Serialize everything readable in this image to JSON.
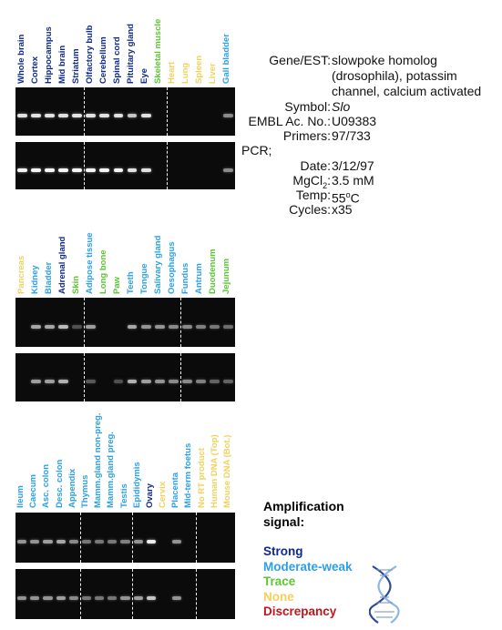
{
  "colors": {
    "strong": "#0e2a8f",
    "moderate_weak": "#2aa0e8",
    "trace": "#5cc632",
    "none": "#f2d15a",
    "discrepancy": "#c3151c"
  },
  "panels": [
    {
      "tissues": [
        {
          "name": "Whole brain",
          "signal": "strong",
          "band1": 0.85,
          "band2": 0.95
        },
        {
          "name": "Cortex",
          "signal": "strong",
          "band1": 0.85,
          "band2": 0.95
        },
        {
          "name": "Hippocampus",
          "signal": "strong",
          "band1": 0.85,
          "band2": 0.95
        },
        {
          "name": "Mid brain",
          "signal": "strong",
          "band1": 0.85,
          "band2": 0.95
        },
        {
          "name": "Striatum",
          "signal": "strong",
          "band1": 0.85,
          "band2": 0.95
        },
        {
          "name": "Olfactory bulb",
          "signal": "strong",
          "band1": 0.85,
          "band2": 0.95
        },
        {
          "name": "Cerebellum",
          "signal": "strong",
          "band1": 0.85,
          "band2": 0.95
        },
        {
          "name": "Spinal cord",
          "signal": "strong",
          "band1": 0.85,
          "band2": 0.95
        },
        {
          "name": "Pituitary gland",
          "signal": "strong",
          "band1": 0.7,
          "band2": 0.85
        },
        {
          "name": "Eye",
          "signal": "strong",
          "band1": 0.85,
          "band2": 0.85
        },
        {
          "name": "Skeletal muscle",
          "signal": "trace",
          "band1": 0,
          "band2": 0
        },
        {
          "name": "Heart",
          "signal": "none",
          "band1": 0,
          "band2": 0
        },
        {
          "name": "Lung",
          "signal": "none",
          "band1": 0,
          "band2": 0
        },
        {
          "name": "Spleen",
          "signal": "none",
          "band1": 0,
          "band2": 0
        },
        {
          "name": "Liver",
          "signal": "none",
          "band1": 0,
          "band2": 0
        },
        {
          "name": "Gall bladder",
          "signal": "moderate_weak",
          "band1": 0.4,
          "band2": 0.4
        }
      ],
      "separators_after": [
        4,
        10
      ]
    },
    {
      "tissues": [
        {
          "name": "Pancreas",
          "signal": "none",
          "band1": 0,
          "band2": 0
        },
        {
          "name": "Kidney",
          "signal": "moderate_weak",
          "band1": 0.55,
          "band2": 0.5
        },
        {
          "name": "Bladder",
          "signal": "moderate_weak",
          "band1": 0.55,
          "band2": 0.5
        },
        {
          "name": "Adrenal gland",
          "signal": "strong",
          "band1": 0.65,
          "band2": 0.6
        },
        {
          "name": "Skin",
          "signal": "trace",
          "band1": 0.1,
          "band2": 0
        },
        {
          "name": "Adipose tissue",
          "signal": "moderate_weak",
          "band1": 0.5,
          "band2": 0.15
        },
        {
          "name": "Long bone",
          "signal": "trace",
          "band1": 0,
          "band2": 0
        },
        {
          "name": "Paw",
          "signal": "trace",
          "band1": 0,
          "band2": 0.1
        },
        {
          "name": "Teeth",
          "signal": "moderate_weak",
          "band1": 0.55,
          "band2": 0.6
        },
        {
          "name": "Tongue",
          "signal": "moderate_weak",
          "band1": 0.45,
          "band2": 0.5
        },
        {
          "name": "Salivary gland",
          "signal": "moderate_weak",
          "band1": 0.45,
          "band2": 0.45
        },
        {
          "name": "Oesophagus",
          "signal": "moderate_weak",
          "band1": 0.4,
          "band2": 0.4
        },
        {
          "name": "Fundus",
          "signal": "moderate_weak",
          "band1": 0.4,
          "band2": 0.4
        },
        {
          "name": "Antrum",
          "signal": "moderate_weak",
          "band1": 0.35,
          "band2": 0.35
        },
        {
          "name": "Duodenum",
          "signal": "trace",
          "band1": 0.3,
          "band2": 0.2
        },
        {
          "name": "Jejunum",
          "signal": "trace",
          "band1": 0.25,
          "band2": 0.2
        }
      ],
      "separators_after": [
        4,
        11
      ]
    },
    {
      "tissues": [
        {
          "name": "Ileum",
          "signal": "moderate_weak",
          "band1": 0.45,
          "band2": 0.45
        },
        {
          "name": "Caecum",
          "signal": "moderate_weak",
          "band1": 0.45,
          "band2": 0.45
        },
        {
          "name": "Asc. colon",
          "signal": "moderate_weak",
          "band1": 0.5,
          "band2": 0.45
        },
        {
          "name": "Desc. colon",
          "signal": "moderate_weak",
          "band1": 0.55,
          "band2": 0.5
        },
        {
          "name": "Appendix",
          "signal": "moderate_weak",
          "band1": 0.4,
          "band2": 0.4
        },
        {
          "name": "Thymus",
          "signal": "moderate_weak",
          "band1": 0.3,
          "band2": 0.3
        },
        {
          "name": "Mamm.gland non-preg.",
          "signal": "moderate_weak",
          "band1": 0.3,
          "band2": 0.3
        },
        {
          "name": "Mamm.gland preg.",
          "signal": "moderate_weak",
          "band1": 0.3,
          "band2": 0.3
        },
        {
          "name": "Testis",
          "signal": "moderate_weak",
          "band1": 0.35,
          "band2": 0.45
        },
        {
          "name": "Epididymis",
          "signal": "moderate_weak",
          "band1": 0.45,
          "band2": 0.5
        },
        {
          "name": "Ovary",
          "signal": "strong",
          "band1": 0.9,
          "band2": 0.7
        },
        {
          "name": "Cervix",
          "signal": "none",
          "band1": 0,
          "band2": 0
        },
        {
          "name": "Placenta",
          "signal": "moderate_weak",
          "band1": 0.45,
          "band2": 0.45
        },
        {
          "name": "Mid-term foetus",
          "signal": "moderate_weak",
          "band1": 0,
          "band2": 0
        },
        {
          "name": "No RT product",
          "signal": "none",
          "band1": 0,
          "band2": 0
        },
        {
          "name": "Human DNA (Top)",
          "signal": "none",
          "band1": 0,
          "band2": 0
        },
        {
          "name": "Mouse DNA (Bot.)",
          "signal": "none",
          "band1": 0,
          "band2": 0
        }
      ],
      "separators_after": [
        4,
        8,
        13
      ]
    }
  ],
  "info": {
    "gene_label": "Gene/EST:",
    "gene_value_lines": [
      "slowpoke homolog",
      "(drosophila), potassim",
      "channel, calcium activated"
    ],
    "symbol_label": "Symbol:",
    "symbol_value": "Slo",
    "embl_label": "EMBL Ac. No.:",
    "embl_value": "U09383",
    "primers_label": "Primers:",
    "primers_value": "97/733",
    "pcr_label": "PCR;",
    "date_label": "Date:",
    "date_value": "3/12/97",
    "mgcl_label_main": "MgCl",
    "mgcl_label_sub": "2",
    "mgcl_label_end": ":",
    "mgcl_value": "3.5 mM",
    "temp_label": "Temp:",
    "temp_value_main": "55",
    "temp_value_sup": "o",
    "temp_value_unit": "C",
    "cycles_label": "Cycles:",
    "cycles_value": "x35"
  },
  "legend": {
    "title_line1": "Amplification",
    "title_line2": "signal:",
    "items": [
      {
        "key": "strong",
        "label": "Strong"
      },
      {
        "key": "moderate_weak",
        "label": "Moderate-weak"
      },
      {
        "key": "trace",
        "label": "Trace"
      },
      {
        "key": "none",
        "label": "None"
      },
      {
        "key": "discrepancy",
        "label": "Discrepancy"
      }
    ]
  }
}
